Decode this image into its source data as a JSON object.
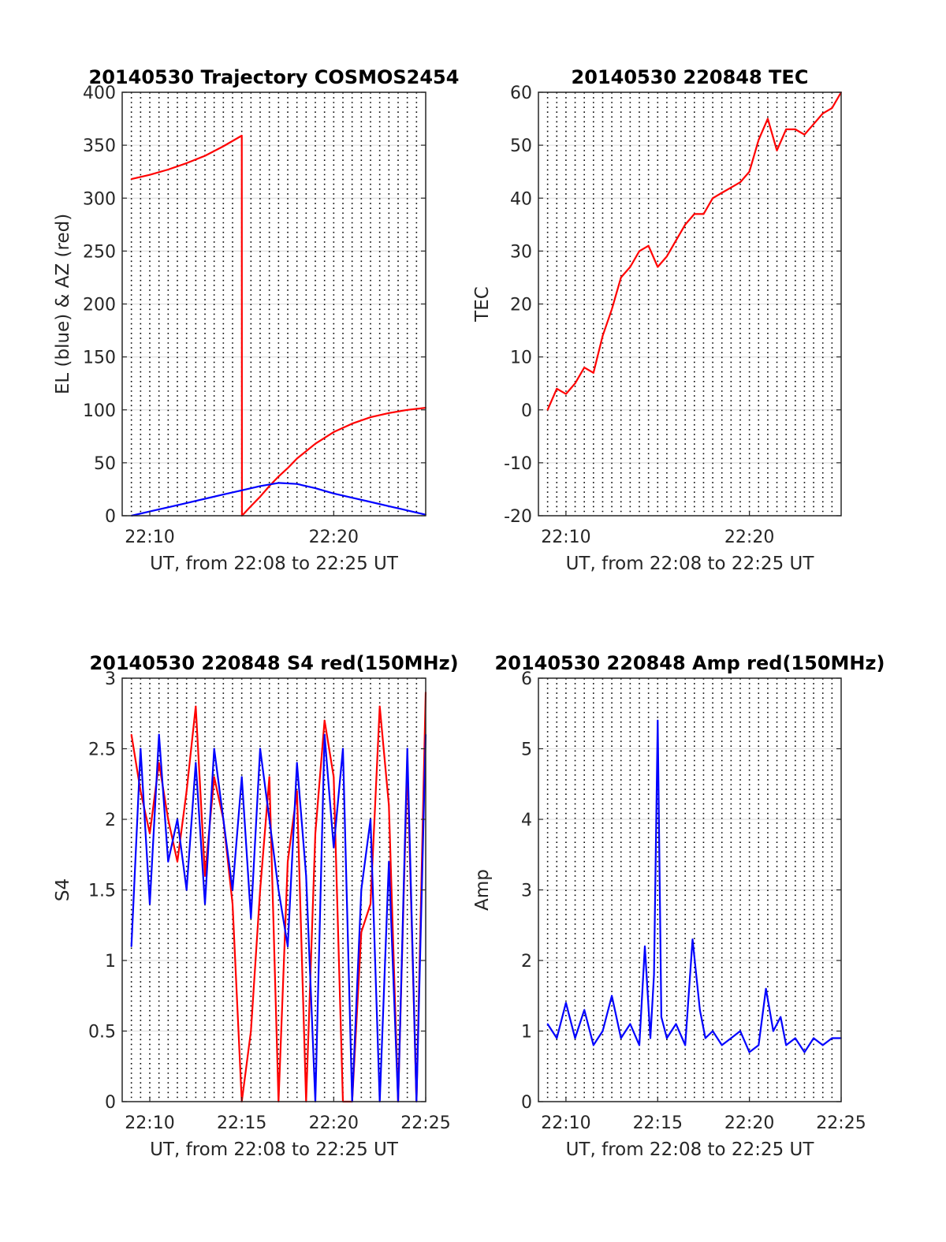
{
  "chart_data": [
    {
      "type": "line",
      "title": "20140530 Trajectory COSMOS2454",
      "xlabel": "UT, from 22:08 to 22:25 UT",
      "ylabel": "EL (blue) & AZ (red)",
      "xlim": [
        8.5,
        25
      ],
      "ylim": [
        0,
        400
      ],
      "yticks": [
        0,
        50,
        100,
        150,
        200,
        250,
        300,
        350,
        400
      ],
      "xtick_labels": [
        {
          "x": 10,
          "label": "22:10"
        },
        {
          "x": 20,
          "label": "22:20"
        }
      ],
      "grid": "on",
      "series": [
        {
          "color": "#ff0000",
          "x": [
            9,
            10,
            11,
            12,
            13,
            14,
            15,
            15.01,
            15.5,
            16,
            16.5,
            17,
            17.5,
            18,
            19,
            20,
            21,
            22,
            23,
            24,
            25
          ],
          "values": [
            318,
            322,
            327,
            333,
            340,
            349,
            359,
            0,
            9,
            18,
            28,
            37,
            45,
            54,
            68,
            79,
            87,
            93,
            97,
            100,
            102
          ]
        },
        {
          "color": "#0000ff",
          "x": [
            9,
            10,
            11,
            12,
            13,
            14,
            15,
            16,
            17,
            18,
            19,
            20,
            21,
            22,
            23,
            24,
            25
          ],
          "values": [
            0,
            4,
            8,
            12,
            16,
            20,
            24,
            28,
            31,
            30,
            26,
            21,
            17,
            13,
            9,
            5,
            1
          ]
        }
      ]
    },
    {
      "type": "line",
      "title": "20140530 220848 TEC",
      "xlabel": "UT, from 22:08 to 22:25 UT",
      "ylabel": "TEC",
      "xlim": [
        8.5,
        25
      ],
      "ylim": [
        -20,
        60
      ],
      "yticks": [
        -20,
        -10,
        0,
        10,
        20,
        30,
        40,
        50,
        60
      ],
      "xtick_labels": [
        {
          "x": 10,
          "label": "22:10"
        },
        {
          "x": 20,
          "label": "22:20"
        }
      ],
      "grid": "on",
      "series": [
        {
          "color": "#ff0000",
          "x": [
            9,
            9.5,
            10,
            10.5,
            11,
            11.5,
            12,
            12.5,
            13,
            13.5,
            14,
            14.5,
            15,
            15.5,
            16,
            16.5,
            17,
            17.5,
            18,
            18.5,
            19,
            19.5,
            20,
            20.5,
            21,
            21.5,
            22,
            22.5,
            23,
            23.5,
            24,
            24.5,
            25
          ],
          "values": [
            0,
            4,
            3,
            5,
            8,
            7,
            14,
            19,
            25,
            27,
            30,
            31,
            27,
            29,
            32,
            35,
            37,
            37,
            40,
            41,
            42,
            43,
            45,
            51,
            55,
            49,
            53,
            53,
            52,
            54,
            56,
            57,
            60
          ]
        }
      ]
    },
    {
      "type": "line",
      "title": "20140530 220848 S4 red(150MHz)",
      "xlabel": "UT, from 22:08 to 22:25 UT",
      "ylabel": "S4",
      "xlim": [
        8.5,
        25
      ],
      "ylim": [
        0,
        3
      ],
      "yticks": [
        0,
        0.5,
        1,
        1.5,
        2,
        2.5,
        3
      ],
      "xtick_labels": [
        {
          "x": 10,
          "label": "22:10"
        },
        {
          "x": 15,
          "label": "22:15"
        },
        {
          "x": 20,
          "label": "22:20"
        },
        {
          "x": 25,
          "label": "22:25"
        }
      ],
      "grid": "on",
      "series": [
        {
          "color": "#ff0000",
          "x": [
            9,
            9.5,
            10,
            10.5,
            11,
            11.5,
            12,
            12.5,
            13,
            13.5,
            14,
            14.5,
            15,
            15.5,
            16,
            16.5,
            17,
            17.5,
            18,
            18.5,
            19,
            19.5,
            20,
            20.5,
            21,
            21.5,
            22,
            22.5,
            23,
            23.5,
            24,
            24.5,
            25
          ],
          "values": [
            2.6,
            2.2,
            1.9,
            2.4,
            2.0,
            1.7,
            2.2,
            2.8,
            1.6,
            2.3,
            2.0,
            1.4,
            0,
            0.5,
            1.5,
            2.3,
            0,
            1.7,
            2.2,
            0,
            1.9,
            2.7,
            2.3,
            0,
            0,
            1.2,
            1.4,
            2.8,
            2.1,
            0,
            2.4,
            0,
            2.9
          ]
        },
        {
          "color": "#0000ff",
          "x": [
            9,
            9.5,
            10,
            10.5,
            11,
            11.5,
            12,
            12.5,
            13,
            13.5,
            14,
            14.5,
            15,
            15.5,
            16,
            16.5,
            17,
            17.5,
            18,
            18.5,
            19,
            19.5,
            20,
            20.5,
            21,
            21.5,
            22,
            22.5,
            23,
            23.5,
            24,
            24.5,
            25
          ],
          "values": [
            1.1,
            2.5,
            1.4,
            2.6,
            1.7,
            2.0,
            1.5,
            2.4,
            1.4,
            2.5,
            2.0,
            1.5,
            2.3,
            1.3,
            2.5,
            2.0,
            1.5,
            1.1,
            2.4,
            1.6,
            0,
            2.6,
            1.8,
            2.5,
            0,
            1.5,
            2.0,
            0,
            1.7,
            0,
            2.5,
            0,
            2.6
          ]
        }
      ]
    },
    {
      "type": "line",
      "title": "20140530 220848 Amp red(150MHz)",
      "xlabel": "UT, from 22:08 to 22:25 UT",
      "ylabel": "Amp",
      "xlim": [
        8.5,
        25
      ],
      "ylim": [
        0,
        6
      ],
      "yticks": [
        0,
        1,
        2,
        3,
        4,
        5,
        6
      ],
      "xtick_labels": [
        {
          "x": 10,
          "label": "22:10"
        },
        {
          "x": 15,
          "label": "22:15"
        },
        {
          "x": 20,
          "label": "22:20"
        },
        {
          "x": 25,
          "label": "22:25"
        }
      ],
      "grid": "on",
      "series": [
        {
          "color": "#0000ff",
          "x": [
            9,
            9.5,
            10,
            10.5,
            11,
            11.5,
            12,
            12.5,
            13,
            13.5,
            14,
            14.3,
            14.6,
            14.8,
            15,
            15.2,
            15.5,
            16,
            16.5,
            16.9,
            17.3,
            17.6,
            18,
            18.5,
            19,
            19.5,
            20,
            20.5,
            20.9,
            21.3,
            21.7,
            22,
            22.5,
            23,
            23.5,
            24,
            24.5,
            25
          ],
          "values": [
            1.1,
            0.9,
            1.4,
            0.9,
            1.3,
            0.8,
            1.0,
            1.5,
            0.9,
            1.1,
            0.8,
            2.2,
            0.9,
            1.8,
            5.4,
            1.2,
            0.9,
            1.1,
            0.8,
            2.3,
            1.3,
            0.9,
            1.0,
            0.8,
            0.9,
            1.0,
            0.7,
            0.8,
            1.6,
            1.0,
            1.2,
            0.8,
            0.9,
            0.7,
            0.9,
            0.8,
            0.9,
            0.9
          ]
        }
      ]
    }
  ]
}
